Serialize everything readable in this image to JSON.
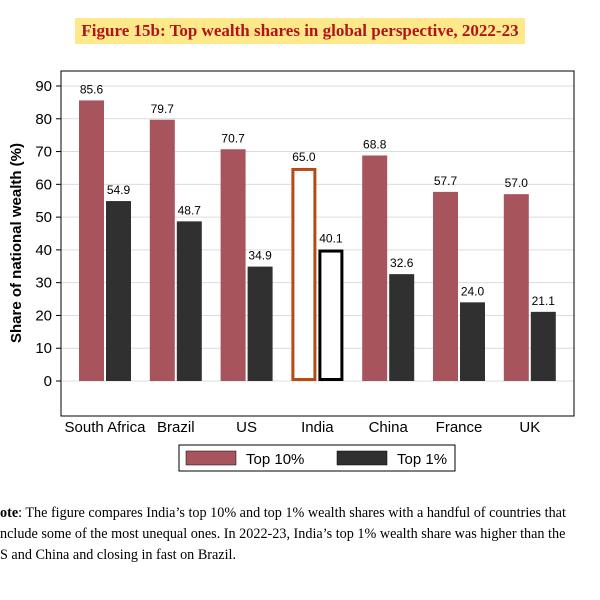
{
  "title": "Figure 15b: Top wealth shares in global perspective, 2022-23",
  "chart_data": {
    "type": "bar",
    "title": "Figure 15b: Top wealth shares in global perspective, 2022-23",
    "xlabel": "",
    "ylabel": "Share of national wealth (%)",
    "ylim": [
      -10,
      95
    ],
    "yticks": [
      0,
      10,
      20,
      30,
      40,
      50,
      60,
      70,
      80,
      90
    ],
    "categories": [
      "South Africa",
      "Brazil",
      "US",
      "India",
      "China",
      "France",
      "UK"
    ],
    "series": [
      {
        "name": "Top 10%",
        "values": [
          85.6,
          79.7,
          70.7,
          65.0,
          68.8,
          57.7,
          57.0
        ],
        "color": "#a8545c"
      },
      {
        "name": "Top 1%",
        "values": [
          54.9,
          48.7,
          34.9,
          40.1,
          32.6,
          24.0,
          21.1
        ],
        "color": "#303030"
      }
    ],
    "highlight": {
      "category": "India",
      "top10_outline": "#b44a14",
      "top1_outline": "#000000"
    },
    "data_labels": true,
    "grid": true,
    "legend_position": "bottom"
  },
  "note": {
    "label": "ote",
    "lines": [
      ": The figure compares India’s top 10% and top 1% wealth shares with a handful of countries that",
      "nclude some of the most unequal ones. In 2022-23, India’s top 1% wealth share was higher than the",
      "S and China and closing in fast on Brazil."
    ]
  }
}
